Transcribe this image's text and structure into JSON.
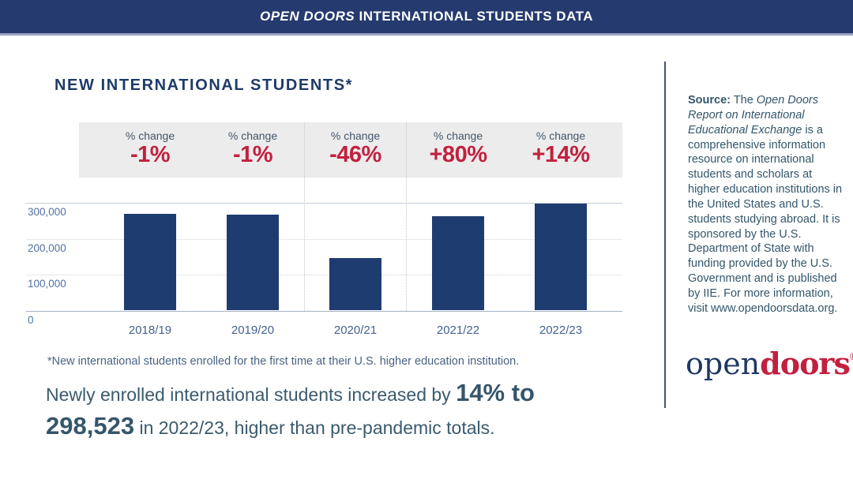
{
  "banner": {
    "brand": "OPEN DOORS",
    "rest": " INTERNATIONAL STUDENTS DATA"
  },
  "main": {
    "title": "NEW INTERNATIONAL STUDENTS*",
    "footnote": "*New international students enrolled for the first time at their U.S. higher education institution.",
    "summary": {
      "line1_normal": "Newly enrolled international students increased by",
      "line1_big": "14% to",
      "line2_big": "298,523",
      "line2_normal": "in 2022/23, higher than pre-pandemic totals."
    }
  },
  "chart_data": {
    "type": "bar",
    "title": "NEW INTERNATIONAL STUDENTS*",
    "categories": [
      "2018/19",
      "2019/20",
      "2020/21",
      "2021/22",
      "2022/23"
    ],
    "values": [
      269000,
      268000,
      146000,
      262000,
      298523
    ],
    "pct_change_label": "% change",
    "pct_changes": [
      "-1%",
      "-1%",
      "-46%",
      "+80%",
      "+14%"
    ],
    "y_ticks": [
      "300,000",
      "200,000",
      "100,000",
      "0"
    ],
    "y_tick_values": [
      300000,
      200000,
      100000,
      0
    ],
    "ylim": [
      0,
      320000
    ],
    "xlabel": "",
    "ylabel": "",
    "grid": "horizontal",
    "legend": "none",
    "bar_color": "#1f3c71",
    "pct_color": "#c2203f",
    "highlighted_category": "2020/21"
  },
  "sidebar": {
    "source_label": "Source:",
    "source_pre": " The ",
    "source_italic": "Open Doors Report on International Educational Exchange",
    "source_post": " is a comprehensive information resource on international students and scholars at higher education institutions in the United States and U.S. students studying abroad. It is sponsored by the U.S. Department of State with funding provided by the U.S. Government and is published by IIE. For more information, visit www.opendoorsdata.org.",
    "logo": {
      "open": "open",
      "doors": "doors",
      "reg": "®"
    }
  }
}
